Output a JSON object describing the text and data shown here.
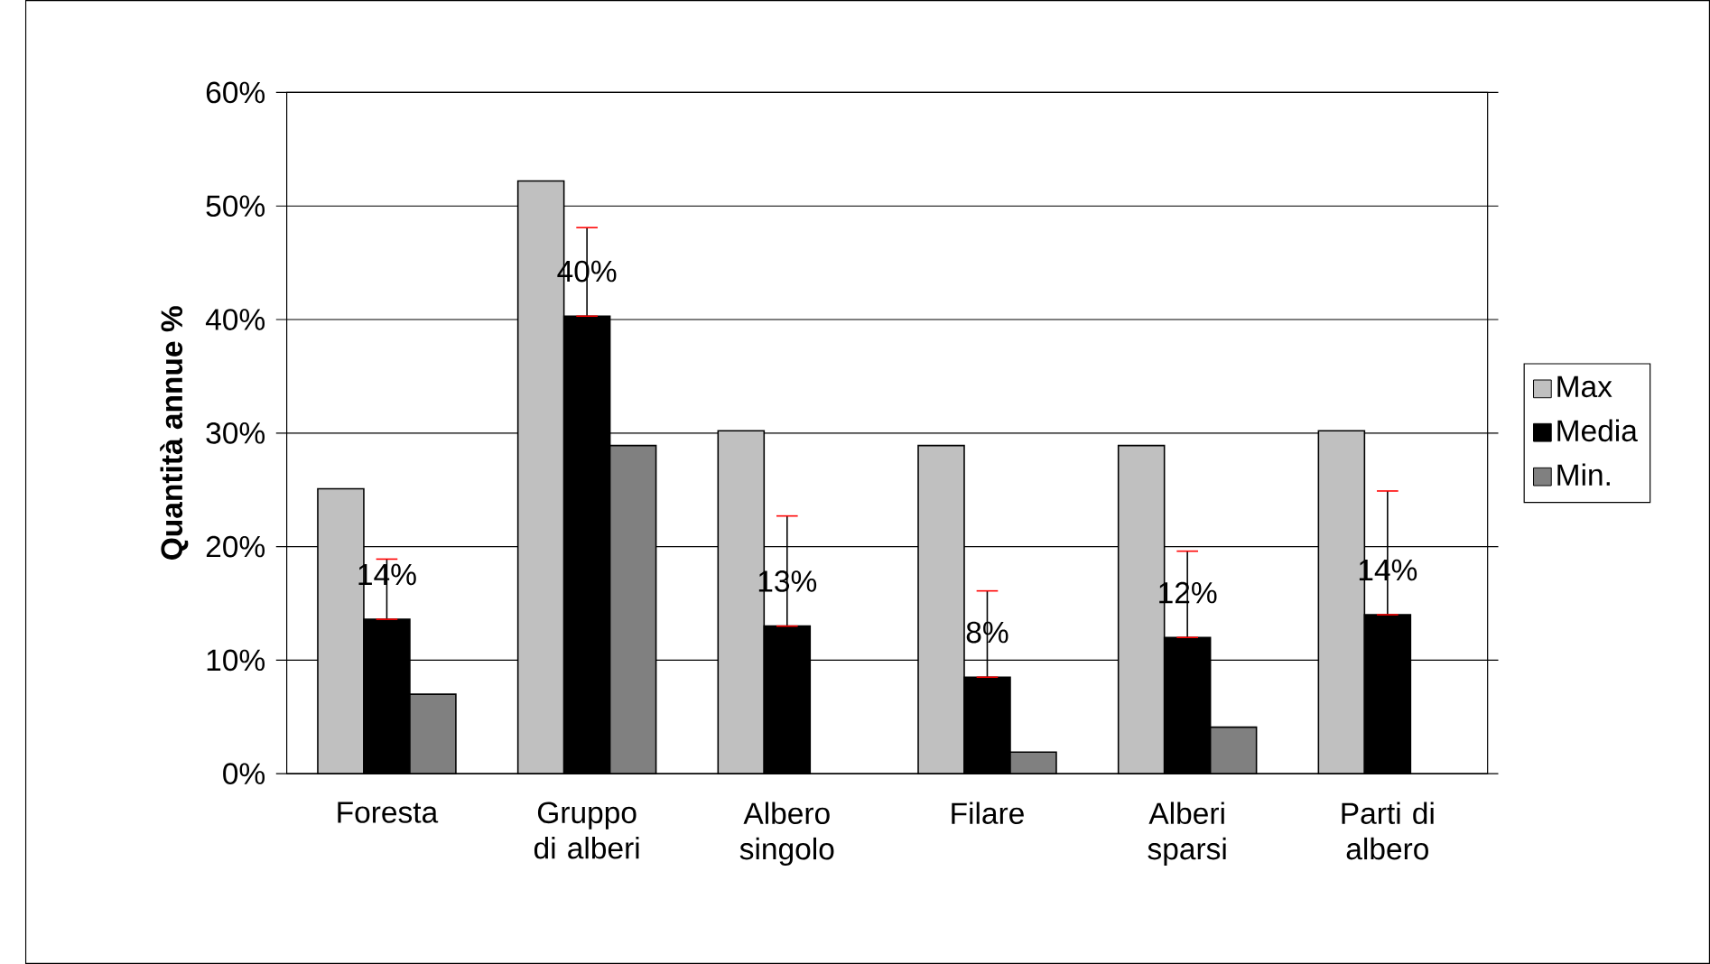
{
  "chart_data": {
    "type": "bar",
    "ylabel": "Quantità annue %",
    "categories": [
      "Foresta",
      "Gruppo di alberi",
      "Albero singolo",
      "Filare",
      "Alberi sparsi",
      "Parti di albero"
    ],
    "series": [
      {
        "name": "Max",
        "color": "#c0c0c0",
        "values": [
          25.1,
          52.2,
          30.2,
          28.9,
          28.9,
          30.2
        ]
      },
      {
        "name": "Media",
        "color": "#000000",
        "values": [
          13.6,
          40.3,
          13.0,
          8.5,
          12.0,
          14.0
        ],
        "errors": [
          [
            13.6,
            18.9
          ],
          [
            40.3,
            48.1
          ],
          [
            13.0,
            22.7
          ],
          [
            8.5,
            16.1
          ],
          [
            12.0,
            19.6
          ],
          [
            14.0,
            24.9
          ]
        ],
        "value_labels": [
          "14%",
          "40%",
          "13%",
          "8%",
          "12%",
          "14%"
        ]
      },
      {
        "name": "Min.",
        "color": "#808080",
        "values": [
          7.0,
          28.9,
          null,
          1.9,
          4.1,
          null
        ]
      }
    ],
    "ylim": [
      0,
      60
    ],
    "yticks": [
      {
        "value": 0,
        "label": "0%"
      },
      {
        "value": 10,
        "label": "10%"
      },
      {
        "value": 20,
        "label": "20%"
      },
      {
        "value": 30,
        "label": "30%"
      },
      {
        "value": 40,
        "label": "40%"
      },
      {
        "value": 50,
        "label": "50%"
      },
      {
        "value": 60,
        "label": "60%"
      }
    ],
    "grid": "y",
    "legend": "right"
  }
}
